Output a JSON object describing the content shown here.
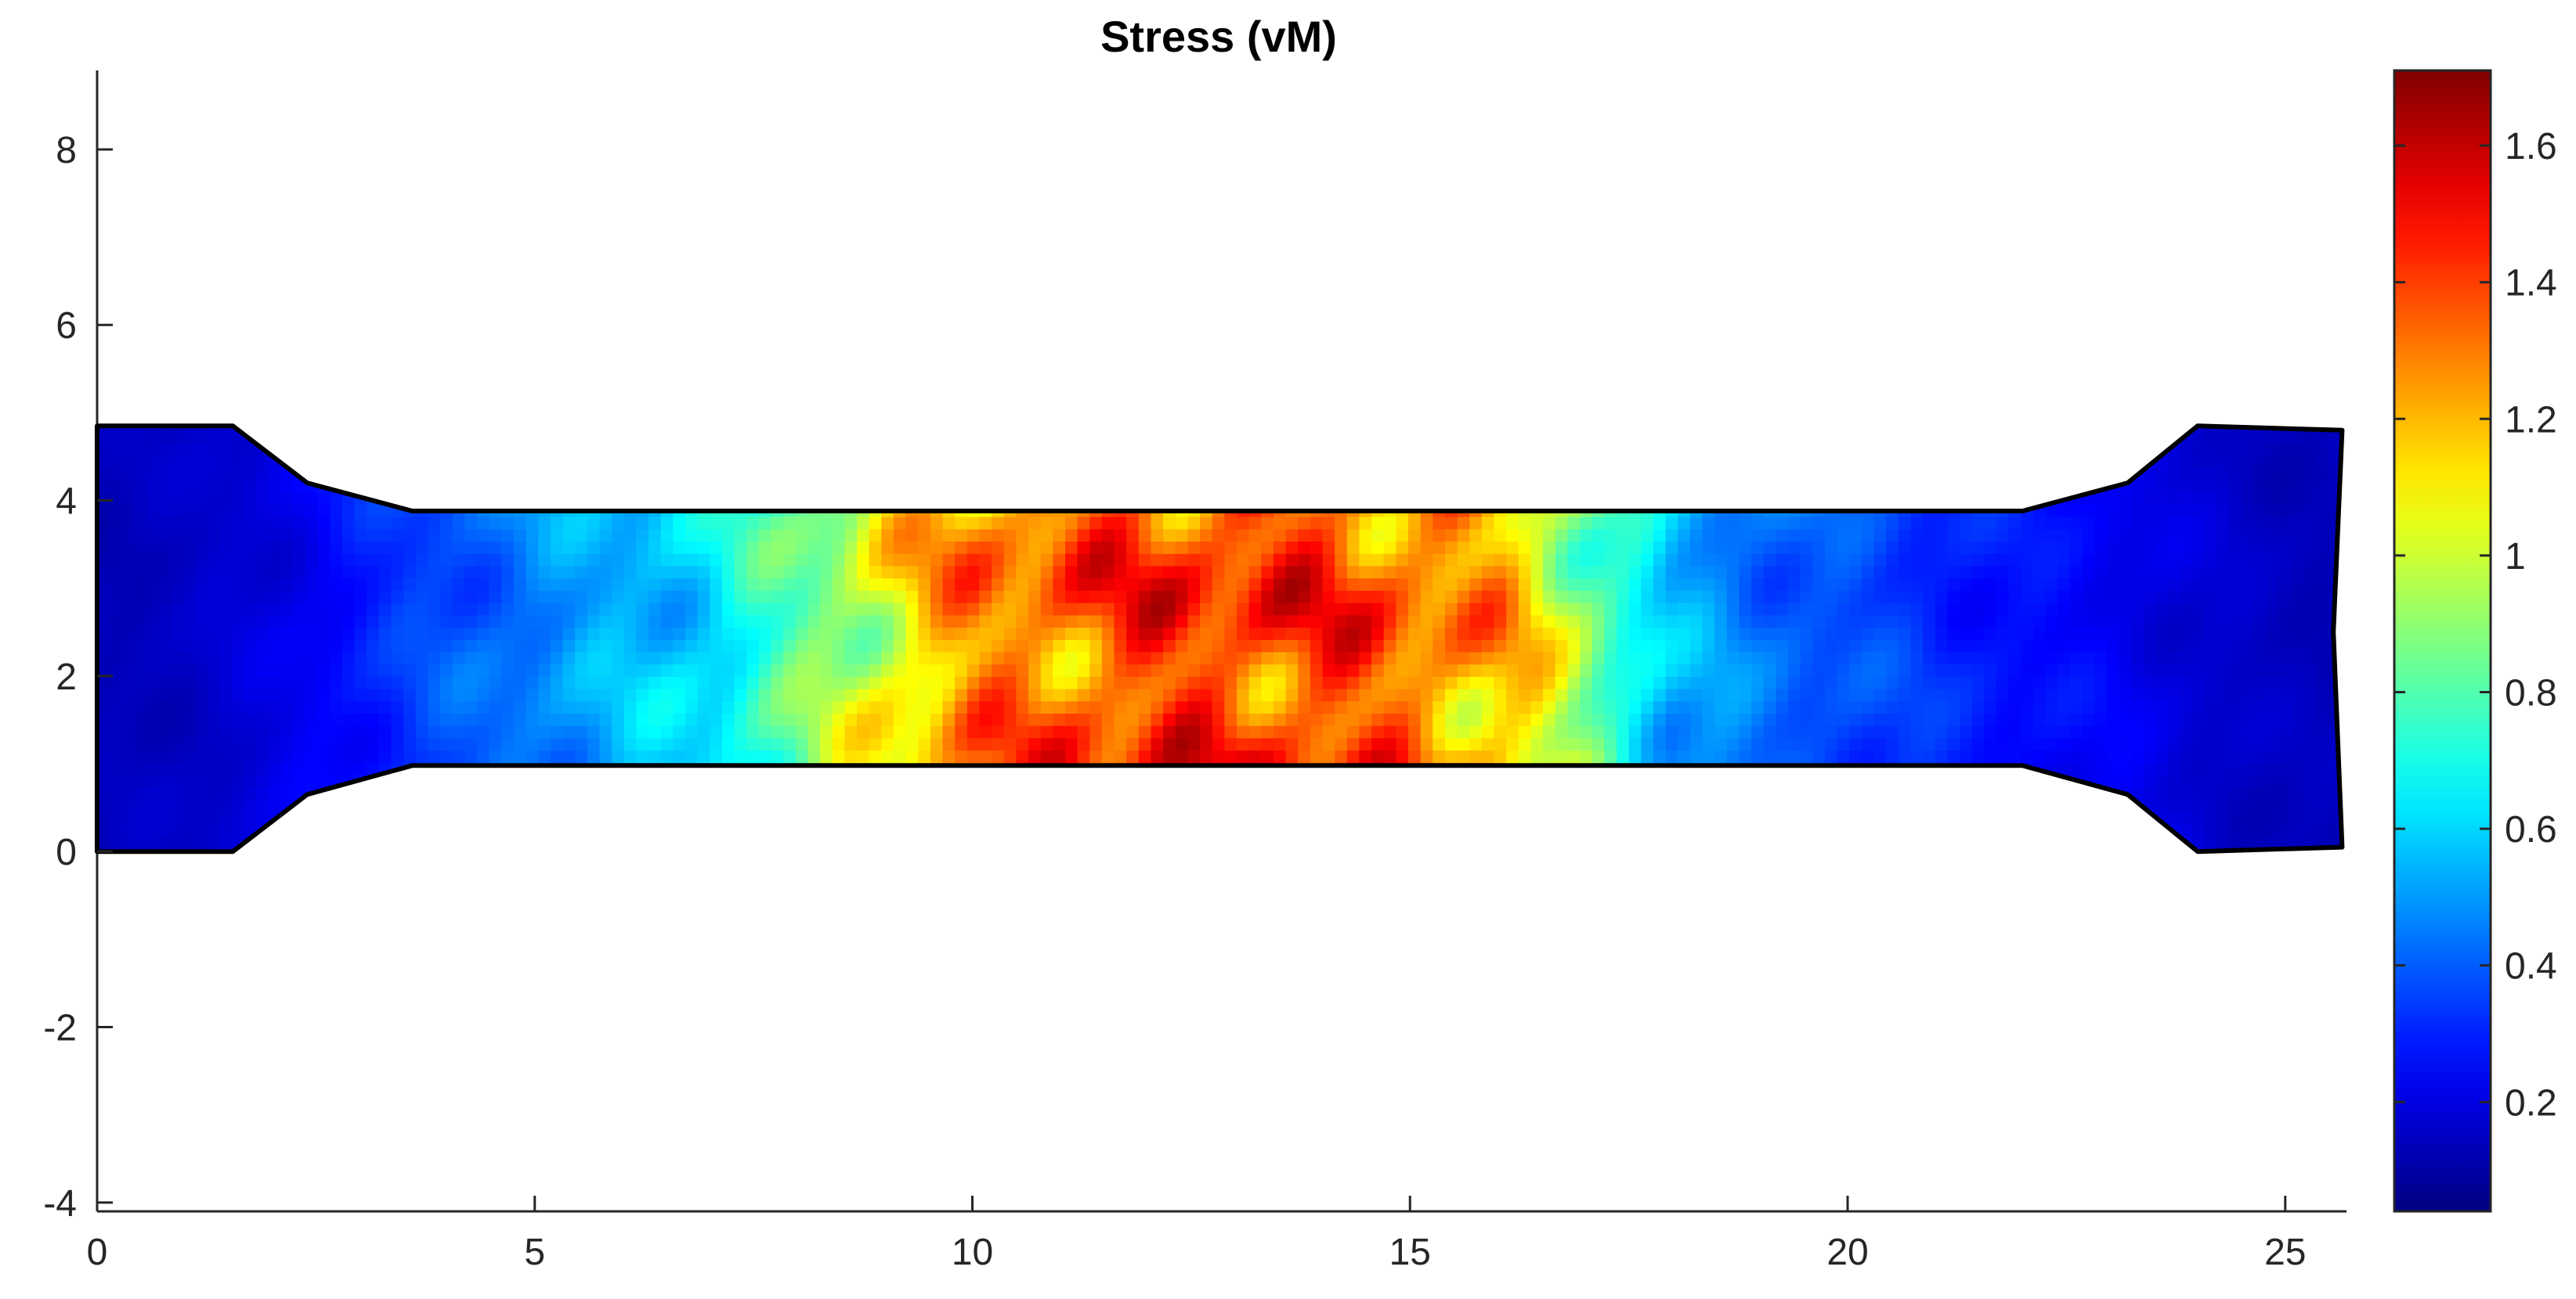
{
  "chart_data": {
    "type": "heatmap",
    "title": "Stress (vM)",
    "xlabel": "",
    "ylabel": "",
    "xlim": [
      0,
      25.7
    ],
    "ylim": [
      -4.1,
      8.9
    ],
    "x_ticks": [
      "0",
      "5",
      "10",
      "15",
      "20",
      "25"
    ],
    "y_ticks": [
      "-4",
      "-2",
      "0",
      "2",
      "4",
      "6",
      "8"
    ],
    "grid": false,
    "colormap": "jet",
    "colorbar": {
      "range": [
        0.04,
        1.71
      ],
      "ticks": [
        "0.2",
        "0.4",
        "0.6",
        "0.8",
        "1",
        "1.2",
        "1.4",
        "1.6"
      ],
      "location": "right"
    },
    "specimen_outline": [
      [
        0,
        0
      ],
      [
        1.55,
        0
      ],
      [
        2.4,
        0.65
      ],
      [
        3.6,
        0.98
      ],
      [
        22.0,
        0.98
      ],
      [
        23.2,
        0.65
      ],
      [
        24.0,
        0
      ],
      [
        25.65,
        0.05
      ],
      [
        25.55,
        2.5
      ],
      [
        25.65,
        4.8
      ],
      [
        24.0,
        4.85
      ],
      [
        23.2,
        4.2
      ],
      [
        22.0,
        3.88
      ],
      [
        3.6,
        3.88
      ],
      [
        2.4,
        4.2
      ],
      [
        1.55,
        4.85
      ],
      [
        0,
        4.85
      ]
    ],
    "stress_field_profile": {
      "x": [
        0,
        1,
        2,
        3,
        4,
        5,
        6,
        7,
        8,
        9,
        10,
        11,
        12,
        13,
        14,
        15,
        16,
        17,
        18,
        19,
        20,
        21,
        22,
        23,
        24,
        25,
        25.65
      ],
      "mean_vm": [
        0.15,
        0.17,
        0.22,
        0.32,
        0.42,
        0.52,
        0.6,
        0.7,
        0.9,
        1.2,
        1.4,
        1.5,
        1.55,
        1.58,
        1.55,
        1.48,
        1.35,
        1.0,
        0.6,
        0.48,
        0.42,
        0.35,
        0.3,
        0.26,
        0.2,
        0.16,
        0.15
      ]
    }
  }
}
